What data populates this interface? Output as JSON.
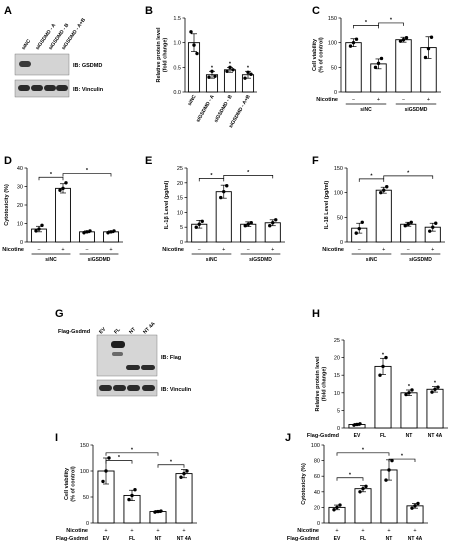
{
  "panels": {
    "A": {
      "letter": "A",
      "lanes": [
        "siNC",
        "siGSDMD - A",
        "siGSDMD - B",
        "siGSDMD - A+B"
      ],
      "blots": [
        "IB: GSDMD",
        "IB: Vinculin"
      ]
    },
    "G": {
      "letter": "G",
      "row_label": "Flag-Gsdmd",
      "lanes": [
        "EV",
        "FL",
        "NT",
        "NT 4A"
      ],
      "blots": [
        "IB: Flag",
        "IB: Vinculin"
      ]
    }
  },
  "chart_data": [
    {
      "id": "B",
      "letter": "B",
      "type": "bar",
      "ylabel": "Relative protein level\n(fold change)",
      "ylim": [
        0,
        1.5
      ],
      "yticks": [
        0.0,
        0.5,
        1.0,
        1.5
      ],
      "tick_decimals": 1,
      "categories": [
        "siNC",
        "siGSDMD - A",
        "siGSDMD - B",
        "siGSDMD - A+B"
      ],
      "values": [
        1.0,
        0.35,
        0.45,
        0.35
      ],
      "errors": [
        0.18,
        0.07,
        0.05,
        0.07
      ],
      "points": [
        [
          1.22,
          0.95,
          0.78
        ],
        [
          0.3,
          0.42,
          0.32
        ],
        [
          0.42,
          0.5,
          0.45
        ],
        [
          0.28,
          0.4,
          0.36
        ]
      ],
      "sig": [
        "",
        "*",
        "*",
        "*"
      ],
      "rotated_labels": true
    },
    {
      "id": "C",
      "letter": "C",
      "type": "bar",
      "ylabel": "Cell viability\n(% of control)",
      "ylim": [
        0,
        150
      ],
      "yticks": [
        0,
        50,
        100,
        150
      ],
      "tick_decimals": 0,
      "categories": [
        "−",
        "+",
        "−",
        "+"
      ],
      "values": [
        100,
        57,
        106,
        90
      ],
      "errors": [
        8,
        10,
        5,
        22
      ],
      "points": [
        [
          93,
          100,
          107
        ],
        [
          50,
          58,
          68
        ],
        [
          103,
          106,
          110
        ],
        [
          70,
          88,
          111
        ]
      ],
      "factor_label": "Nicotine",
      "groups": [
        {
          "label": "siNC",
          "span": [
            0,
            1
          ]
        },
        {
          "label": "siGSDMD",
          "span": [
            2,
            3
          ]
        }
      ],
      "brackets": [
        {
          "from": 0,
          "to": 1,
          "y": 135,
          "label": "*"
        },
        {
          "from": 1,
          "to": 2,
          "y": 140,
          "label": "*"
        }
      ]
    },
    {
      "id": "D",
      "letter": "D",
      "type": "bar",
      "ylabel": "Cytotoxicity (%)",
      "ylim": [
        0,
        40
      ],
      "yticks": [
        0,
        10,
        20,
        30,
        40
      ],
      "tick_decimals": 0,
      "categories": [
        "−",
        "+",
        "−",
        "+"
      ],
      "values": [
        7,
        29,
        5.5,
        5.5
      ],
      "errors": [
        1.5,
        2.5,
        0.5,
        0.5
      ],
      "points": [
        [
          6,
          7,
          9
        ],
        [
          28,
          29,
          32
        ],
        [
          5,
          5.5,
          6
        ],
        [
          5,
          5.5,
          6
        ]
      ],
      "factor_label": "Nicotine",
      "groups": [
        {
          "label": "siNC",
          "span": [
            0,
            1
          ]
        },
        {
          "label": "siGSDMD",
          "span": [
            2,
            3
          ]
        }
      ],
      "brackets": [
        {
          "from": 0,
          "to": 1,
          "y": 35,
          "label": "*"
        },
        {
          "from": 1,
          "to": 3,
          "y": 37,
          "label": "*"
        }
      ]
    },
    {
      "id": "E",
      "letter": "E",
      "type": "bar",
      "ylabel": "IL-1β Level (pg/ml)",
      "ylim": [
        0,
        25
      ],
      "yticks": [
        0,
        5,
        10,
        15,
        20,
        25
      ],
      "tick_decimals": 0,
      "categories": [
        "−",
        "+",
        "−",
        "+"
      ],
      "values": [
        6,
        17,
        6,
        6.5
      ],
      "errors": [
        1.3,
        2.2,
        0.8,
        1.0
      ],
      "points": [
        [
          5,
          6,
          7
        ],
        [
          15,
          17,
          19
        ],
        [
          5.5,
          6,
          6.5
        ],
        [
          5.5,
          6.5,
          7.5
        ]
      ],
      "factor_label": "Nicotine",
      "groups": [
        {
          "label": "siNC",
          "span": [
            0,
            1
          ]
        },
        {
          "label": "siGSDMD",
          "span": [
            2,
            3
          ]
        }
      ],
      "brackets": [
        {
          "from": 0,
          "to": 1,
          "y": 21.5,
          "label": "*"
        },
        {
          "from": 1,
          "to": 3,
          "y": 22.5,
          "label": "*"
        }
      ]
    },
    {
      "id": "F",
      "letter": "F",
      "type": "bar",
      "ylabel": "IL-18 Level (pg/ml)",
      "ylim": [
        0,
        150
      ],
      "yticks": [
        0,
        50,
        100,
        150
      ],
      "tick_decimals": 0,
      "categories": [
        "−",
        "+",
        "−",
        "+"
      ],
      "values": [
        28,
        105,
        36,
        30
      ],
      "errors": [
        10,
        6,
        4,
        8
      ],
      "points": [
        [
          18,
          27,
          40
        ],
        [
          100,
          105,
          112
        ],
        [
          33,
          36,
          40
        ],
        [
          22,
          30,
          38
        ]
      ],
      "factor_label": "Nicotine",
      "groups": [
        {
          "label": "siNC",
          "span": [
            0,
            1
          ]
        },
        {
          "label": "siGSDMD",
          "span": [
            2,
            3
          ]
        }
      ],
      "brackets": [
        {
          "from": 0,
          "to": 1,
          "y": 128,
          "label": "*"
        },
        {
          "from": 1,
          "to": 3,
          "y": 134,
          "label": "*"
        }
      ]
    },
    {
      "id": "H",
      "letter": "H",
      "type": "bar",
      "ylabel": "Relative protein level\n(fold change)",
      "ylim": [
        0,
        25
      ],
      "yticks": [
        0,
        5,
        10,
        15,
        20,
        25
      ],
      "tick_decimals": 0,
      "categories": [
        "EV",
        "FL",
        "NT",
        "NT 4A"
      ],
      "values": [
        1.0,
        17.5,
        10.0,
        11.0
      ],
      "errors": [
        0.3,
        2.3,
        0.8,
        0.8
      ],
      "points": [
        [
          0.8,
          1.0,
          1.2
        ],
        [
          15,
          17.5,
          20
        ],
        [
          9.5,
          10,
          10.8
        ],
        [
          10.2,
          11,
          11.6
        ]
      ],
      "sig": [
        "",
        "*",
        "*",
        "*"
      ],
      "row_label": "Flag-Gsdmd"
    },
    {
      "id": "I",
      "letter": "I",
      "type": "bar",
      "ylabel": "Cell viability\n(% of control)",
      "ylim": [
        0,
        150
      ],
      "yticks": [
        0,
        50,
        100,
        150
      ],
      "tick_decimals": 0,
      "categories": [
        "EV",
        "FL",
        "NT",
        "NT 4A"
      ],
      "values": [
        100,
        53,
        22,
        95
      ],
      "errors": [
        25,
        10,
        2,
        8
      ],
      "points": [
        [
          80,
          100,
          125
        ],
        [
          45,
          53,
          64
        ],
        [
          21,
          22,
          23
        ],
        [
          88,
          95,
          100
        ]
      ],
      "factor_label": "Nicotine",
      "factor_values": [
        "+",
        "+",
        "+",
        "+"
      ],
      "row_label": "Flag-Gsdmd",
      "brackets": [
        {
          "from": 0,
          "to": 1,
          "y": 120,
          "label": "*"
        },
        {
          "from": 0,
          "to": 2,
          "y": 135,
          "label": "*"
        },
        {
          "from": 2,
          "to": 3,
          "y": 112,
          "label": "*"
        }
      ]
    },
    {
      "id": "J",
      "letter": "J",
      "type": "bar",
      "ylabel": "Cytotoxicity (%)",
      "ylim": [
        0,
        100
      ],
      "yticks": [
        0,
        20,
        40,
        60,
        80,
        100
      ],
      "tick_decimals": 0,
      "categories": [
        "EV",
        "FL",
        "NT",
        "NT 4A"
      ],
      "values": [
        20,
        44,
        68,
        22
      ],
      "errors": [
        3,
        4,
        13,
        3
      ],
      "points": [
        [
          17,
          20,
          23
        ],
        [
          40,
          44,
          47
        ],
        [
          55,
          68,
          80
        ],
        [
          19,
          22,
          25
        ]
      ],
      "factor_label": "Nicotine",
      "factor_values": [
        "+",
        "+",
        "+",
        "+"
      ],
      "row_label": "Flag-Gsdmd",
      "brackets": [
        {
          "from": 0,
          "to": 1,
          "y": 58,
          "label": "*"
        },
        {
          "from": 0,
          "to": 2,
          "y": 90,
          "label": "*"
        },
        {
          "from": 2,
          "to": 3,
          "y": 82,
          "label": "*"
        }
      ]
    }
  ]
}
